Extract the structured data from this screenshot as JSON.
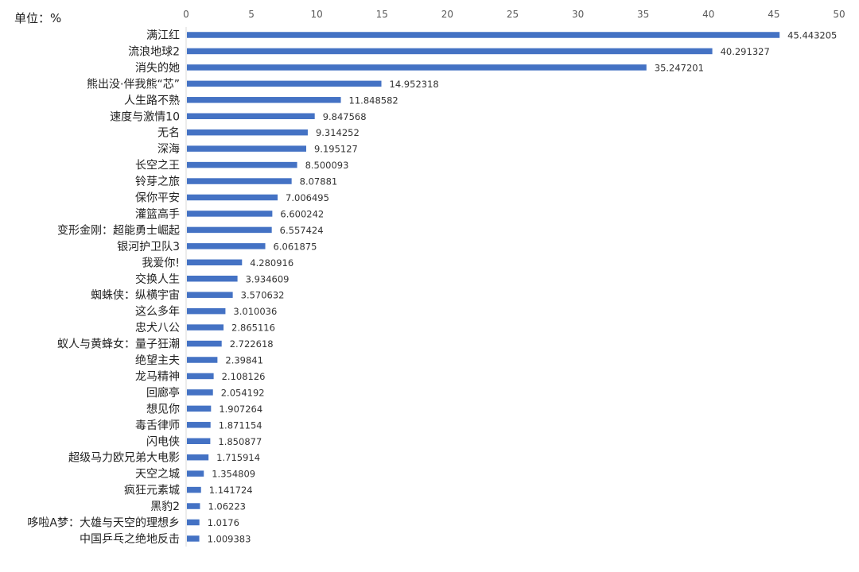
{
  "unit_label": "单位：%",
  "colors": {
    "bar": "#4472C4",
    "axis_text": "#595959",
    "category_text": "#222222",
    "value_text": "#333333",
    "axis_line": "#D9D9D9"
  },
  "chart_data": {
    "type": "bar",
    "orientation": "horizontal",
    "title": "",
    "xlabel": "",
    "ylabel": "",
    "xlim": [
      0,
      50
    ],
    "x_ticks": [
      0,
      5,
      10,
      15,
      20,
      25,
      30,
      35,
      40,
      45,
      50
    ],
    "x_axis_position": "top",
    "grid": false,
    "legend": "none",
    "categories": [
      "满江红",
      "流浪地球2",
      "消失的她",
      "熊出没·伴我熊“芯”",
      "人生路不熟",
      "速度与激情10",
      "无名",
      "深海",
      "长空之王",
      "铃芽之旅",
      "保你平安",
      "灌篮高手",
      "变形金刚：超能勇士崛起",
      "银河护卫队3",
      "我爱你!",
      "交换人生",
      "蜘蛛侠：纵横宇宙",
      "这么多年",
      "忠犬八公",
      "蚁人与黄蜂女：量子狂潮",
      "绝望主夫",
      "龙马精神",
      "回廊亭",
      "想见你",
      "毒舌律师",
      "闪电侠",
      "超级马力欧兄弟大电影",
      "天空之城",
      "疯狂元素城",
      "黑豹2",
      "哆啦A梦：大雄与天空的理想乡",
      "中国乒乓之绝地反击"
    ],
    "values": [
      45.443205,
      40.291327,
      35.247201,
      14.952318,
      11.848582,
      9.847568,
      9.314252,
      9.195127,
      8.500093,
      8.07881,
      7.006495,
      6.600242,
      6.557424,
      6.061875,
      4.280916,
      3.934609,
      3.570632,
      3.010036,
      2.865116,
      2.722618,
      2.39841,
      2.108126,
      2.054192,
      1.907264,
      1.871154,
      1.850877,
      1.715914,
      1.354809,
      1.141724,
      1.06223,
      1.0176,
      1.009383
    ],
    "value_labels": [
      "45.443205",
      "40.291327",
      "35.247201",
      "14.952318",
      "11.848582",
      "9.847568",
      "9.314252",
      "9.195127",
      "8.500093",
      "8.07881",
      "7.006495",
      "6.600242",
      "6.557424",
      "6.061875",
      "4.280916",
      "3.934609",
      "3.570632",
      "3.010036",
      "2.865116",
      "2.722618",
      "2.39841",
      "2.108126",
      "2.054192",
      "1.907264",
      "1.871154",
      "1.850877",
      "1.715914",
      "1.354809",
      "1.141724",
      "1.06223",
      "1.0176",
      "1.009383"
    ]
  }
}
